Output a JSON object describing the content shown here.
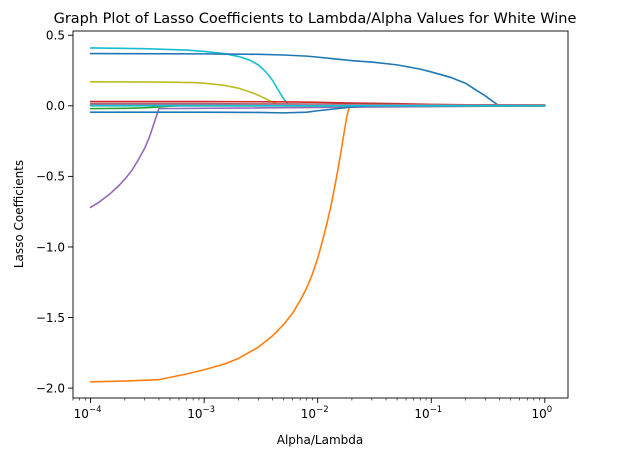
{
  "chart_data": {
    "type": "line",
    "title": "Graph Plot of Lasso Coefficients to Lambda/Alpha Values for White Wine",
    "xlabel": "Alpha/Lambda",
    "ylabel": "Lasso Coefficients",
    "x_scale": "log",
    "xlim": [
      7e-05,
      1.6
    ],
    "ylim": [
      -2.07,
      0.53
    ],
    "x_ticks": [
      {
        "value": 0.0001,
        "base": "10",
        "exp": "−4"
      },
      {
        "value": 0.001,
        "base": "10",
        "exp": "−3"
      },
      {
        "value": 0.01,
        "base": "10",
        "exp": "−2"
      },
      {
        "value": 0.1,
        "base": "10",
        "exp": "−1"
      },
      {
        "value": 1,
        "base": "10",
        "exp": "0"
      }
    ],
    "y_ticks": [
      {
        "value": 0.5,
        "label": "0.5"
      },
      {
        "value": 0.0,
        "label": "0.0"
      },
      {
        "value": -0.5,
        "label": "−0.5"
      },
      {
        "value": -1.0,
        "label": "−1.0"
      },
      {
        "value": -1.5,
        "label": "−1.5"
      },
      {
        "value": -2.0,
        "label": "−2.0"
      }
    ],
    "grid": false,
    "legend": "none",
    "series": [
      {
        "color": "#ff7f0e",
        "x": [
          0.0001,
          0.0002,
          0.0004,
          0.0007,
          0.001,
          0.0015,
          0.002,
          0.003,
          0.004,
          0.005,
          0.006,
          0.007,
          0.008,
          0.009,
          0.01,
          0.011,
          0.012,
          0.013,
          0.014,
          0.015,
          0.016,
          0.017,
          0.018,
          0.019,
          0.02,
          1.0
        ],
        "y": [
          -1.955,
          -1.95,
          -1.94,
          -1.9,
          -1.87,
          -1.83,
          -1.79,
          -1.71,
          -1.63,
          -1.55,
          -1.47,
          -1.38,
          -1.29,
          -1.19,
          -1.08,
          -0.96,
          -0.84,
          -0.72,
          -0.59,
          -0.46,
          -0.33,
          -0.2,
          -0.08,
          -0.005,
          0.0,
          0.0
        ]
      },
      {
        "color": "#9467bd",
        "x": [
          0.0001,
          0.00012,
          0.00015,
          0.00018,
          0.0002,
          0.00023,
          0.00026,
          0.0003,
          0.00033,
          0.00036,
          0.0004,
          1.0
        ],
        "y": [
          -0.72,
          -0.68,
          -0.62,
          -0.56,
          -0.52,
          -0.46,
          -0.39,
          -0.3,
          -0.22,
          -0.13,
          -0.02,
          0.0
        ]
      },
      {
        "color": "#17becf",
        "x": [
          0.0001,
          0.0003,
          0.0007,
          0.001,
          0.0015,
          0.002,
          0.0025,
          0.003,
          0.0035,
          0.004,
          0.0045,
          0.005,
          0.0055,
          0.006,
          1.0
        ],
        "y": [
          0.41,
          0.405,
          0.395,
          0.385,
          0.37,
          0.35,
          0.325,
          0.29,
          0.24,
          0.18,
          0.11,
          0.05,
          0.01,
          0.0,
          0.0
        ]
      },
      {
        "color": "#1f77b4",
        "x": [
          0.0001,
          0.001,
          0.003,
          0.005,
          0.008,
          0.01,
          0.015,
          0.02,
          0.03,
          0.05,
          0.08,
          0.1,
          0.15,
          0.2,
          0.25,
          0.3,
          0.35,
          0.38,
          0.4,
          1.0
        ],
        "y": [
          0.37,
          0.368,
          0.365,
          0.36,
          0.352,
          0.345,
          0.33,
          0.32,
          0.31,
          0.29,
          0.26,
          0.24,
          0.2,
          0.16,
          0.11,
          0.07,
          0.03,
          0.01,
          0.0,
          0.0
        ]
      },
      {
        "color": "#bcbd22",
        "x": [
          0.0001,
          0.0004,
          0.0008,
          0.001,
          0.0015,
          0.002,
          0.0025,
          0.003,
          0.0035,
          0.004,
          0.0045,
          0.005,
          1.0
        ],
        "y": [
          0.17,
          0.168,
          0.165,
          0.16,
          0.145,
          0.125,
          0.1,
          0.075,
          0.05,
          0.025,
          0.01,
          0.0,
          0.0
        ]
      },
      {
        "color": "#d62728",
        "x": [
          0.0001,
          0.001,
          0.005,
          0.01,
          0.02,
          0.05,
          0.1,
          0.3,
          1.0
        ],
        "y": [
          0.03,
          0.03,
          0.028,
          0.025,
          0.02,
          0.015,
          0.01,
          0.005,
          0.005
        ]
      },
      {
        "color": "#8c564b",
        "x": [
          0.0001,
          0.001,
          0.005,
          0.01,
          0.05,
          0.1,
          0.5,
          1.0
        ],
        "y": [
          0.015,
          0.015,
          0.013,
          0.012,
          0.01,
          0.008,
          0.006,
          0.005
        ]
      },
      {
        "color": "#e377c2",
        "x": [
          0.0001,
          0.001,
          0.01,
          0.1,
          1.0
        ],
        "y": [
          0.01,
          0.01,
          0.008,
          0.005,
          0.004
        ]
      },
      {
        "color": "#7f7f7f",
        "x": [
          0.0001,
          0.001,
          0.01,
          0.1,
          1.0
        ],
        "y": [
          0.005,
          0.005,
          0.004,
          0.003,
          0.002
        ]
      },
      {
        "color": "#2ca02c",
        "x": [
          0.0001,
          0.0002,
          0.0003,
          0.0004,
          0.0005,
          0.0006,
          1.0
        ],
        "y": [
          -0.02,
          -0.018,
          -0.014,
          -0.008,
          -0.003,
          0.0,
          0.0
        ]
      },
      {
        "color": "#1f77b4",
        "x": [
          0.0001,
          0.001,
          0.003,
          0.005,
          0.008,
          0.01,
          0.015,
          0.02,
          0.025,
          0.03,
          1.0
        ],
        "y": [
          -0.045,
          -0.045,
          -0.047,
          -0.05,
          -0.045,
          -0.035,
          -0.02,
          -0.008,
          -0.002,
          0.0,
          0.0
        ]
      },
      {
        "color": "#17becf",
        "x": [
          0.0001,
          1.0
        ],
        "y": [
          0.0,
          0.0
        ]
      }
    ]
  }
}
